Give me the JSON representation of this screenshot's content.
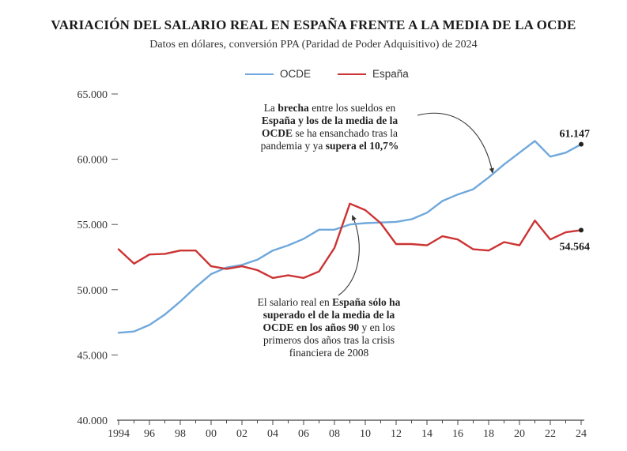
{
  "chart_data": {
    "type": "line",
    "title": "VARIACIÓN DEL SALARIO REAL EN ESPAÑA FRENTE A LA MEDIA DE LA OCDE",
    "subtitle": "Datos en dólares, conversión PPA (Paridad de Poder Adquisitivo) de 2024",
    "xlabel": "",
    "ylabel": "",
    "ylim": [
      40000,
      65000
    ],
    "xlim": [
      1994,
      2024
    ],
    "y_ticks": [
      {
        "value": 40000,
        "label": "40.000"
      },
      {
        "value": 45000,
        "label": "45.000"
      },
      {
        "value": 50000,
        "label": "50.000"
      },
      {
        "value": 55000,
        "label": "55.000"
      },
      {
        "value": 60000,
        "label": "60.000"
      },
      {
        "value": 65000,
        "label": "65.000"
      }
    ],
    "x_ticks": [
      {
        "value": 1994,
        "label": "1994"
      },
      {
        "value": 1996,
        "label": "96"
      },
      {
        "value": 1998,
        "label": "98"
      },
      {
        "value": 2000,
        "label": "00"
      },
      {
        "value": 2002,
        "label": "02"
      },
      {
        "value": 2004,
        "label": "04"
      },
      {
        "value": 2006,
        "label": "06"
      },
      {
        "value": 2008,
        "label": "08"
      },
      {
        "value": 2010,
        "label": "10"
      },
      {
        "value": 2012,
        "label": "12"
      },
      {
        "value": 2014,
        "label": "14"
      },
      {
        "value": 2016,
        "label": "16"
      },
      {
        "value": 2018,
        "label": "18"
      },
      {
        "value": 2020,
        "label": "20"
      },
      {
        "value": 2022,
        "label": "22"
      },
      {
        "value": 2024,
        "label": "24"
      }
    ],
    "x": [
      1994,
      1995,
      1996,
      1997,
      1998,
      1999,
      2000,
      2001,
      2002,
      2003,
      2004,
      2005,
      2006,
      2007,
      2008,
      2009,
      2010,
      2011,
      2012,
      2013,
      2014,
      2015,
      2016,
      2017,
      2018,
      2019,
      2020,
      2021,
      2022,
      2023,
      2024
    ],
    "series": [
      {
        "name": "OCDE",
        "color": "#6fa8dc",
        "values": [
          46700,
          46800,
          47300,
          48100,
          49100,
          50200,
          51200,
          51700,
          51900,
          52300,
          53000,
          53400,
          53900,
          54600,
          54600,
          55000,
          55100,
          55150,
          55200,
          55400,
          55900,
          56800,
          57300,
          57700,
          58600,
          59600,
          60500,
          61400,
          60200,
          60500,
          61147
        ]
      },
      {
        "name": "España",
        "color": "#cc3333",
        "values": [
          53100,
          52000,
          52700,
          52750,
          53000,
          53000,
          51800,
          51600,
          51800,
          51500,
          50900,
          51100,
          50900,
          51400,
          53200,
          56600,
          56100,
          55100,
          53500,
          53500,
          53400,
          54100,
          53850,
          53100,
          53000,
          53650,
          53400,
          55300,
          53850,
          54400,
          54564
        ]
      }
    ],
    "end_labels": [
      {
        "series": "OCDE",
        "label": "61.147"
      },
      {
        "series": "España",
        "label": "54.564"
      }
    ],
    "legend": "top-center",
    "grid": false,
    "annotations": [
      {
        "id": "brecha",
        "target_year": 2018
      },
      {
        "id": "superado",
        "target_year": 2009
      }
    ]
  },
  "text": {
    "ann1_a": "La ",
    "ann1_b": "brecha",
    "ann1_c": " entre los sueldos en",
    "ann1_d": "España y los de la media de la",
    "ann1_e": "OCDE",
    "ann1_f": " se ha ensanchado tras la",
    "ann1_g": "pandemia y ya ",
    "ann1_h": "supera el 10,7%",
    "ann2_a": "El salario real en ",
    "ann2_b": "España sólo ha",
    "ann2_c": "superado el de la media de la",
    "ann2_d": "OCDE en los años 90",
    "ann2_e": " y en los",
    "ann2_f": "primeros dos años tras la crisis",
    "ann2_g": "financiera de 2008"
  }
}
